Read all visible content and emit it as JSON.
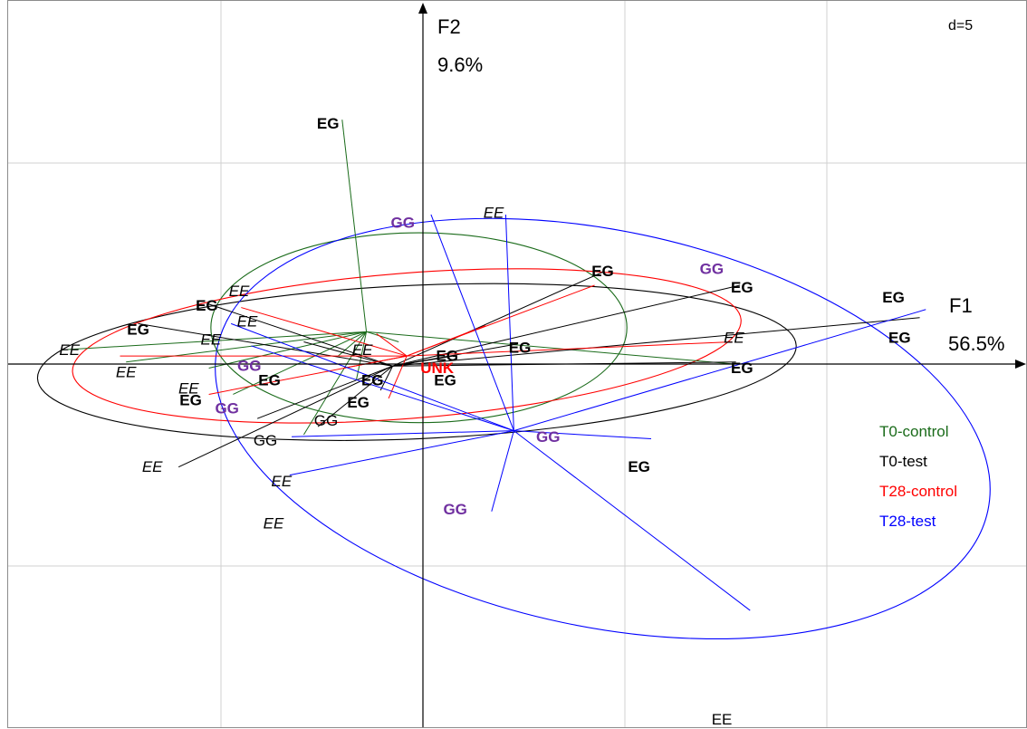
{
  "chart_data": {
    "type": "scatter",
    "subtype": "between-class PCA star plot with inertia ellipses",
    "scale_label": "d=5",
    "xlabel": "F1",
    "xlabel_pct": "56.5%",
    "ylabel": "F2",
    "ylabel_pct": "9.6%",
    "xlim": [
      -20.5,
      29.5
    ],
    "ylim": [
      -19.6,
      18.6
    ],
    "grid_step": 10,
    "grid": true,
    "legend_position": "right",
    "colors": {
      "T0-control": "#1a6b1a",
      "T0-test": "#000000",
      "T28-control": "#ff0000",
      "T28-test": "#0000ff",
      "GG": "#7030a0",
      "UNK": "#ff0000"
    },
    "groups": [
      {
        "name": "T0-control",
        "color": "#1a6b1a",
        "center": [
          -2.8,
          1.6
        ],
        "ellipse": {
          "cx": -0.2,
          "cy": 1.8,
          "rx": 10.3,
          "ry": 4.7,
          "angle": 0
        },
        "points": [
          [
            -4,
            12.1
          ],
          [
            -17.9,
            0.7
          ],
          [
            -14.7,
            0.1
          ],
          [
            -10.6,
            -0.2
          ],
          [
            -9.4,
            -1.5
          ],
          [
            -5.9,
            -3.5
          ],
          [
            -3.3,
            -0.8
          ],
          [
            -1.2,
            1.1
          ],
          [
            -4.2,
            0.4
          ],
          [
            15.4,
            0
          ]
        ]
      },
      {
        "name": "T0-test",
        "color": "#000000",
        "center": [
          -1.5,
          -0.1
        ],
        "ellipse": {
          "cx": -0.3,
          "cy": 0.1,
          "rx": 18.8,
          "ry": 3.8,
          "angle": 2.5
        },
        "points": [
          [
            -14.1,
            2
          ],
          [
            -10.7,
            3
          ],
          [
            -5.9,
            1.1
          ],
          [
            -12.1,
            -5.1
          ],
          [
            -8.2,
            -2.7
          ],
          [
            -5.2,
            -3.1
          ],
          [
            -2.1,
            -1.3
          ],
          [
            1.5,
            0.4
          ],
          [
            4.7,
            1
          ],
          [
            9,
            4.6
          ],
          [
            15.7,
            3.9
          ],
          [
            24.6,
            2.3
          ],
          [
            15.5,
            0.1
          ]
        ]
      },
      {
        "name": "T28-control",
        "color": "#ff0000",
        "center": [
          -0.8,
          0.4
        ],
        "ellipse": {
          "cx": -0.8,
          "cy": 0.9,
          "rx": 16.6,
          "ry": 3.6,
          "angle": 4.5
        },
        "points": [
          [
            -15,
            0.4
          ],
          [
            -10.6,
            -1.5
          ],
          [
            -9,
            2.8
          ],
          [
            -2.3,
            1.5
          ],
          [
            3.1,
            1.9
          ],
          [
            8.5,
            3.9
          ],
          [
            15.3,
            1.1
          ],
          [
            -3.9,
            -0.2
          ],
          [
            -1.7,
            -1.7
          ]
        ]
      },
      {
        "name": "T28-test",
        "color": "#0000ff",
        "center": [
          4.5,
          -3.3
        ],
        "ellipse": {
          "cx": 8.9,
          "cy": -3.2,
          "rx": 19.5,
          "ry": 9.8,
          "angle": -12
        },
        "points": [
          [
            0.4,
            7.4
          ],
          [
            4.1,
            7.4
          ],
          [
            3.4,
            -7.3
          ],
          [
            11.3,
            -3.7
          ],
          [
            16.2,
            -12.2
          ],
          [
            24.9,
            2.7
          ],
          [
            -6.6,
            -5.5
          ],
          [
            -6.5,
            -3.6
          ],
          [
            -9.5,
            2
          ],
          [
            -8.5,
            0.9
          ]
        ]
      }
    ],
    "labels": [
      {
        "text": "EG",
        "style": "bold",
        "color": "#000000",
        "x": -4.7,
        "y": 11.9
      },
      {
        "text": "EG",
        "style": "bold",
        "color": "#000000",
        "x": -10.7,
        "y": 2.9
      },
      {
        "text": "EG",
        "style": "bold",
        "color": "#000000",
        "x": -14.1,
        "y": 1.7
      },
      {
        "text": "EG",
        "style": "bold",
        "color": "#000000",
        "x": -7.6,
        "y": -0.8
      },
      {
        "text": "EG",
        "style": "bold",
        "color": "#000000",
        "x": -11.5,
        "y": -1.8
      },
      {
        "text": "EG",
        "style": "bold",
        "color": "#000000",
        "x": -2.5,
        "y": -0.8
      },
      {
        "text": "EG",
        "style": "bold",
        "color": "#000000",
        "x": -3.2,
        "y": -1.9
      },
      {
        "text": "EG",
        "style": "bold",
        "color": "#000000",
        "x": 1.2,
        "y": 0.4
      },
      {
        "text": "EG",
        "style": "bold",
        "color": "#000000",
        "x": 1.1,
        "y": -0.8
      },
      {
        "text": "EG",
        "style": "bold",
        "color": "#000000",
        "x": 4.8,
        "y": 0.8
      },
      {
        "text": "EG",
        "style": "bold",
        "color": "#000000",
        "x": 8.9,
        "y": 4.6
      },
      {
        "text": "EG",
        "style": "bold",
        "color": "#000000",
        "x": 15.8,
        "y": 3.8
      },
      {
        "text": "EG",
        "style": "bold",
        "color": "#000000",
        "x": 15.8,
        "y": -0.2
      },
      {
        "text": "EG",
        "style": "bold",
        "color": "#000000",
        "x": 23.3,
        "y": 3.3
      },
      {
        "text": "EG",
        "style": "bold",
        "color": "#000000",
        "x": 23.6,
        "y": 1.3
      },
      {
        "text": "EG",
        "style": "bold",
        "color": "#000000",
        "x": 10.7,
        "y": -5.1
      },
      {
        "text": "EE",
        "style": "italic",
        "color": "#000000",
        "x": -9.1,
        "y": 3.6
      },
      {
        "text": "EE",
        "style": "italic",
        "color": "#000000",
        "x": -8.7,
        "y": 2.1
      },
      {
        "text": "EE",
        "style": "italic",
        "color": "#000000",
        "x": -10.5,
        "y": 1.2
      },
      {
        "text": "EE",
        "style": "italic",
        "color": "#000000",
        "x": -17.5,
        "y": 0.7
      },
      {
        "text": "EE",
        "style": "italic",
        "color": "#000000",
        "x": -14.7,
        "y": -0.4
      },
      {
        "text": "EE",
        "style": "italic",
        "color": "#000000",
        "x": -11.6,
        "y": -1.2
      },
      {
        "text": "EE",
        "style": "italic",
        "color": "#000000",
        "x": -3,
        "y": 0.7
      },
      {
        "text": "EE",
        "style": "italic",
        "color": "#000000",
        "x": 3.5,
        "y": 7.5
      },
      {
        "text": "EE",
        "style": "italic",
        "color": "#000000",
        "x": 15.4,
        "y": 1.3
      },
      {
        "text": "EE",
        "style": "italic",
        "color": "#000000",
        "x": -13.4,
        "y": -5.1
      },
      {
        "text": "EE",
        "style": "italic",
        "color": "#000000",
        "x": -7,
        "y": -5.8
      },
      {
        "text": "EE",
        "style": "italic",
        "color": "#000000",
        "x": -7.4,
        "y": -7.9
      },
      {
        "text": "EE",
        "style": "normal",
        "color": "#000000",
        "x": 14.8,
        "y": -17.6
      },
      {
        "text": "GG",
        "style": "normal",
        "color": "#000000",
        "x": -4.8,
        "y": -2.8
      },
      {
        "text": "GG",
        "style": "normal",
        "color": "#000000",
        "x": -7.8,
        "y": -3.8
      },
      {
        "text": "GG",
        "style": "bold",
        "color": "#7030a0",
        "x": -1,
        "y": 7
      },
      {
        "text": "GG",
        "style": "bold",
        "color": "#7030a0",
        "x": 14.3,
        "y": 4.7
      },
      {
        "text": "GG",
        "style": "bold",
        "color": "#7030a0",
        "x": -8.6,
        "y": -0.1
      },
      {
        "text": "GG",
        "style": "bold",
        "color": "#7030a0",
        "x": -9.7,
        "y": -2.2
      },
      {
        "text": "GG",
        "style": "bold",
        "color": "#7030a0",
        "x": 6.2,
        "y": -3.6
      },
      {
        "text": "GG",
        "style": "bold",
        "color": "#7030a0",
        "x": 1.6,
        "y": -7.2
      },
      {
        "text": "UNK",
        "style": "bold",
        "color": "#ff0000",
        "x": 0.7,
        "y": -0.2
      }
    ]
  },
  "legend": [
    {
      "label": "T0-control",
      "color": "#1a6b1a"
    },
    {
      "label": "T0-test",
      "color": "#000000"
    },
    {
      "label": "T28-control",
      "color": "#ff0000"
    },
    {
      "label": "T28-test",
      "color": "#0000ff"
    }
  ]
}
